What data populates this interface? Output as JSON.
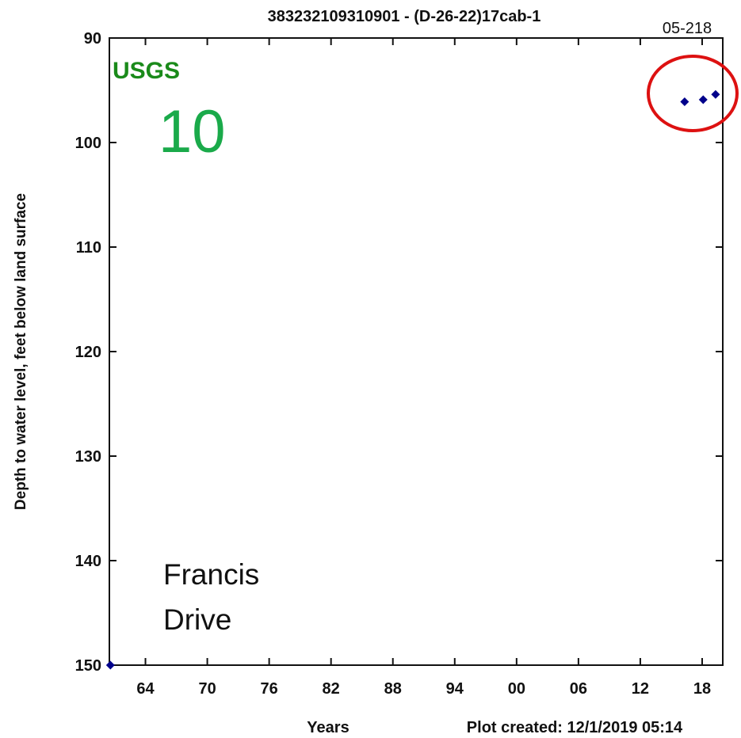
{
  "chart_data": {
    "type": "scatter",
    "title": "383232109310901 - (D-26-22)17cab-1",
    "xlabel": "Years",
    "ylabel": "Depth to water level, feet below land surface",
    "footer": "Plot created: 12/1/2019 05:14",
    "xlim": [
      1960.5,
      2020.0
    ],
    "ylim": [
      90,
      150
    ],
    "y_inverted": true,
    "grid": false,
    "x_ticks": [
      {
        "value": 1964,
        "label": "64"
      },
      {
        "value": 1970,
        "label": "70"
      },
      {
        "value": 1976,
        "label": "76"
      },
      {
        "value": 1982,
        "label": "82"
      },
      {
        "value": 1988,
        "label": "88"
      },
      {
        "value": 1994,
        "label": "94"
      },
      {
        "value": 2000,
        "label": "00"
      },
      {
        "value": 2006,
        "label": "06"
      },
      {
        "value": 2012,
        "label": "12"
      },
      {
        "value": 2018,
        "label": "18"
      }
    ],
    "y_ticks": [
      {
        "value": 90,
        "label": "90"
      },
      {
        "value": 100,
        "label": "100"
      },
      {
        "value": 110,
        "label": "110"
      },
      {
        "value": 120,
        "label": "120"
      },
      {
        "value": 130,
        "label": "130"
      },
      {
        "value": 140,
        "label": "140"
      },
      {
        "value": 150,
        "label": "150"
      }
    ],
    "series": [
      {
        "color": "#00008b",
        "marker": "diamond",
        "points": [
          {
            "x": 1960.6,
            "y": 150.0
          },
          {
            "x": 2016.3,
            "y": 96.1
          },
          {
            "x": 2018.1,
            "y": 95.9
          },
          {
            "x": 2019.3,
            "y": 95.4
          }
        ]
      }
    ]
  },
  "annotations": {
    "logo": "USGS",
    "logo_color": "#1a8a1a",
    "number": "10",
    "number_color": "#1aaa4a",
    "site_label_line1": "Francis",
    "site_label_line2": "Drive",
    "corner_id": "05-218",
    "highlight_color": "#dd1111"
  }
}
